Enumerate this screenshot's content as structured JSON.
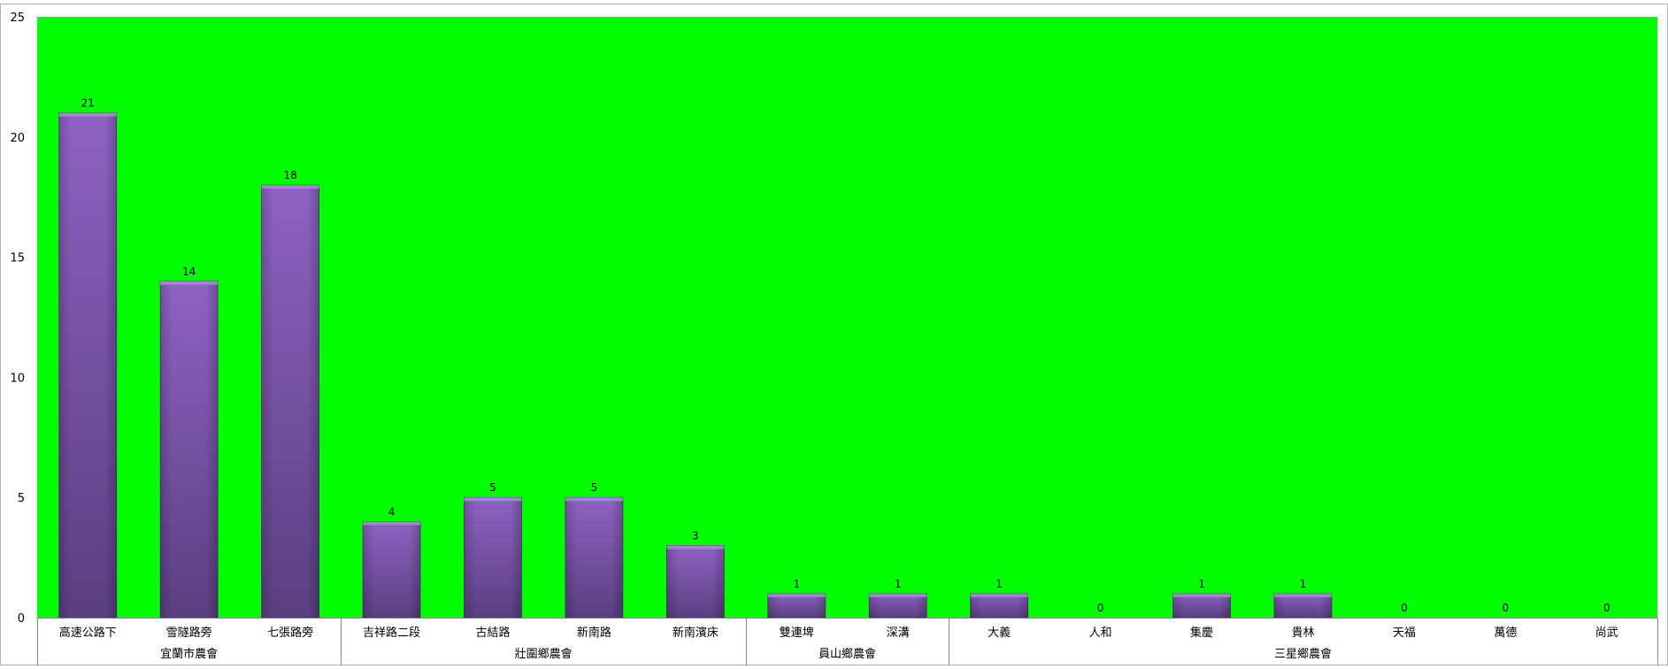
{
  "chart_data": {
    "type": "bar",
    "title": "",
    "xlabel": "",
    "ylabel": "",
    "ylim": [
      0,
      25
    ],
    "yticks": [
      0,
      5,
      10,
      15,
      20,
      25
    ],
    "grid": false,
    "legend": "none",
    "categories": [
      "高速公路下",
      "雪隧路旁",
      "七張路旁",
      "吉祥路二段",
      "古結路",
      "新南路",
      "新南濱床",
      "雙連埤",
      "深溝",
      "大義",
      "人和",
      "集慶",
      "貴林",
      "天福",
      "萬德",
      "尚武"
    ],
    "groups": [
      {
        "label": "宜蘭市農會",
        "count": 3
      },
      {
        "label": "壯圍鄉農會",
        "count": 4
      },
      {
        "label": "員山鄉農會",
        "count": 2
      },
      {
        "label": "三星鄉農會",
        "count": 7
      }
    ],
    "series": [
      {
        "values": [
          21,
          14,
          18,
          4,
          5,
          5,
          3,
          1,
          1,
          1,
          0,
          1,
          1,
          0,
          0,
          0
        ]
      }
    ],
    "colors": {
      "plot_background": "#00ff00",
      "bar_light": "#8e62c2",
      "bar_dark": "#5a3f80",
      "bar_top": "#a98ad4"
    }
  }
}
